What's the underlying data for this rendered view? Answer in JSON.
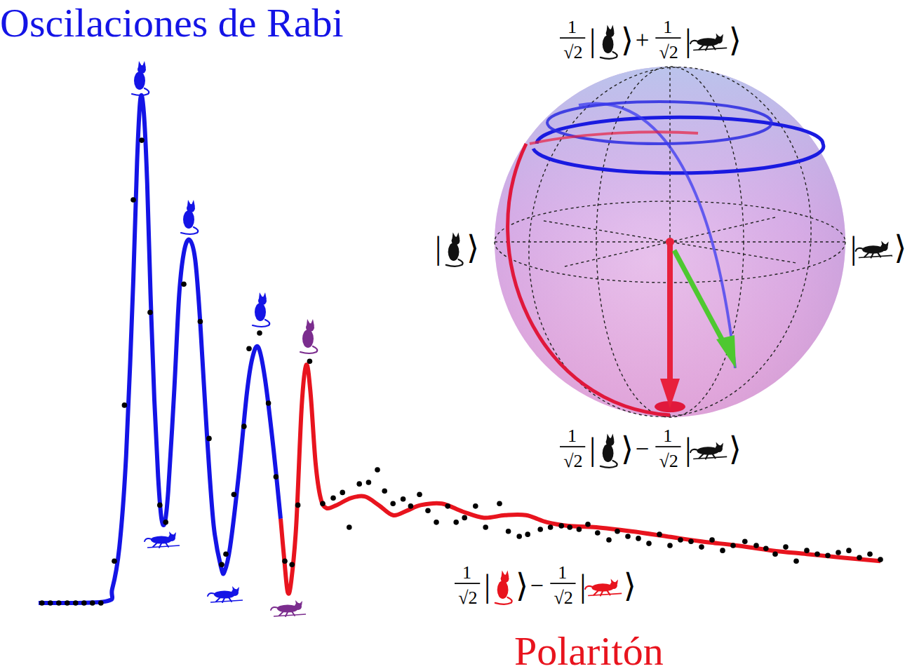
{
  "chart_data": {
    "type": "line",
    "xlim": [
      0,
      101
    ],
    "ylim": [
      0,
      102
    ],
    "xticks": [],
    "yticks": [],
    "tick_labels": false,
    "grid": false,
    "series": [
      {
        "name": "Oscilaciones de Rabi",
        "color": "#1414e6",
        "type": "line",
        "x": [
          0,
          7.9,
          8.75,
          9.6,
          10.4,
          11.25,
          11.7,
          12.1,
          12.5,
          12.9,
          13.3,
          13.75,
          14.2,
          14.6,
          15,
          15.4,
          16.1,
          16.7,
          17.25,
          17.9,
          18.6,
          19.2,
          20,
          20.8,
          21.7,
          22.1,
          22.75,
          23.75,
          24.75,
          25.4,
          26.1,
          26.9,
          27.9,
          28.75
        ],
        "values": [
          0,
          0.3,
          2.8,
          11.1,
          29.2,
          63.9,
          87.5,
          100,
          97.2,
          83.3,
          61.1,
          40.3,
          25,
          16.7,
          16,
          22.2,
          41.7,
          61.1,
          69.4,
          72,
          68.1,
          55.6,
          33.3,
          15.3,
          6.9,
          6.3,
          11.1,
          25,
          41.7,
          48.6,
          50.7,
          44.4,
          30.6,
          16.7
        ]
      },
      {
        "name": "Polaritón",
        "color": "#e8141e",
        "type": "line",
        "x": [
          28.75,
          29.2,
          29.6,
          30,
          30.6,
          31.25,
          31.8,
          32.3,
          32.9,
          33.5,
          34.2,
          35.4,
          37.1,
          38.75,
          40.4,
          42.1,
          43.75,
          45.4,
          47.9,
          50.4,
          52.9,
          55.4,
          57.9,
          60.4,
          62.9,
          66.25,
          70.4,
          74.6,
          78.75,
          82.9,
          87.1,
          91.25,
          95.4,
          100
        ],
        "values": [
          16.7,
          8.3,
          2.1,
          4.2,
          15.3,
          38.9,
          47.2,
          41.7,
          27.8,
          20.8,
          18.8,
          19.4,
          20.8,
          21.1,
          19.4,
          17.4,
          18.3,
          19.4,
          19.7,
          18.1,
          16.9,
          17.4,
          17.4,
          16,
          15.3,
          15,
          14.2,
          13.2,
          12.2,
          11.4,
          10.4,
          9.7,
          9,
          8.3
        ]
      },
      {
        "color": "#000000",
        "type": "scatter",
        "marker": "circle",
        "x": [
          0.4,
          1.4,
          2.4,
          3.4,
          4.4,
          5.4,
          6.4,
          7.4,
          9,
          10.2,
          11.25,
          12.25,
          13.25,
          14.4,
          15.1,
          17.25,
          19.2,
          20.25,
          21.75,
          22.25,
          23.2,
          24.4,
          25,
          26.25,
          27.3,
          28.2,
          29.25,
          30.1,
          30.8,
          32.2,
          33.75,
          35,
          36.1,
          36.9,
          38.1,
          39.2,
          40.25,
          41.1,
          42.1,
          43.3,
          44.2,
          45.25,
          46.25,
          47.25,
          48.6,
          49.6,
          50.6,
          51.9,
          53.1,
          54.75,
          55.8,
          57.1,
          58.1,
          59.6,
          60.8,
          62.1,
          63.1,
          64.2,
          65.25,
          66.4,
          67.75,
          68.75,
          70,
          71.25,
          72.5,
          73.75,
          75,
          76.25,
          77.5,
          78.75,
          80,
          81.25,
          82.5,
          83.9,
          85.25,
          86.4,
          87.5,
          88.75,
          90,
          91.25,
          92.5,
          93.75,
          95,
          96.25,
          97.5,
          98.75,
          100
        ],
        "values": [
          0,
          0,
          0,
          0,
          0,
          0,
          0,
          0,
          8.3,
          39.2,
          79.9,
          91.7,
          57.6,
          19.4,
          16,
          63.2,
          55.8,
          32.6,
          7.6,
          9.7,
          21.5,
          35,
          50.4,
          53.5,
          39.6,
          25,
          8.3,
          7.6,
          19.4,
          47.9,
          19.7,
          20.8,
          21.9,
          15,
          23.6,
          23.9,
          26.4,
          22.2,
          19.7,
          20.6,
          19.2,
          21.5,
          18.3,
          16,
          19.2,
          16,
          16.9,
          19.2,
          15,
          19.7,
          14.2,
          13.2,
          13.6,
          14.6,
          15,
          15.3,
          15,
          14.6,
          15.6,
          13.9,
          12.5,
          14.2,
          13.2,
          12.8,
          11.8,
          13.6,
          11.4,
          12.5,
          12.2,
          11.1,
          12.5,
          10.4,
          11.4,
          12.2,
          11.4,
          10.8,
          9.7,
          11.1,
          8.3,
          10.4,
          9.7,
          9.4,
          10,
          10.4,
          9,
          9.7,
          8.6
        ]
      }
    ]
  },
  "bloch_sphere": {
    "ket_open": "|",
    "ket_close": "⟩",
    "states": {
      "top": {
        "numerator": "1",
        "denominator": "√2",
        "sign": "+"
      },
      "bottom": {
        "numerator": "1",
        "denominator": "√2",
        "sign": "−"
      },
      "polariton": {
        "numerator": "1",
        "denominator": "√2",
        "sign": "−"
      }
    }
  }
}
